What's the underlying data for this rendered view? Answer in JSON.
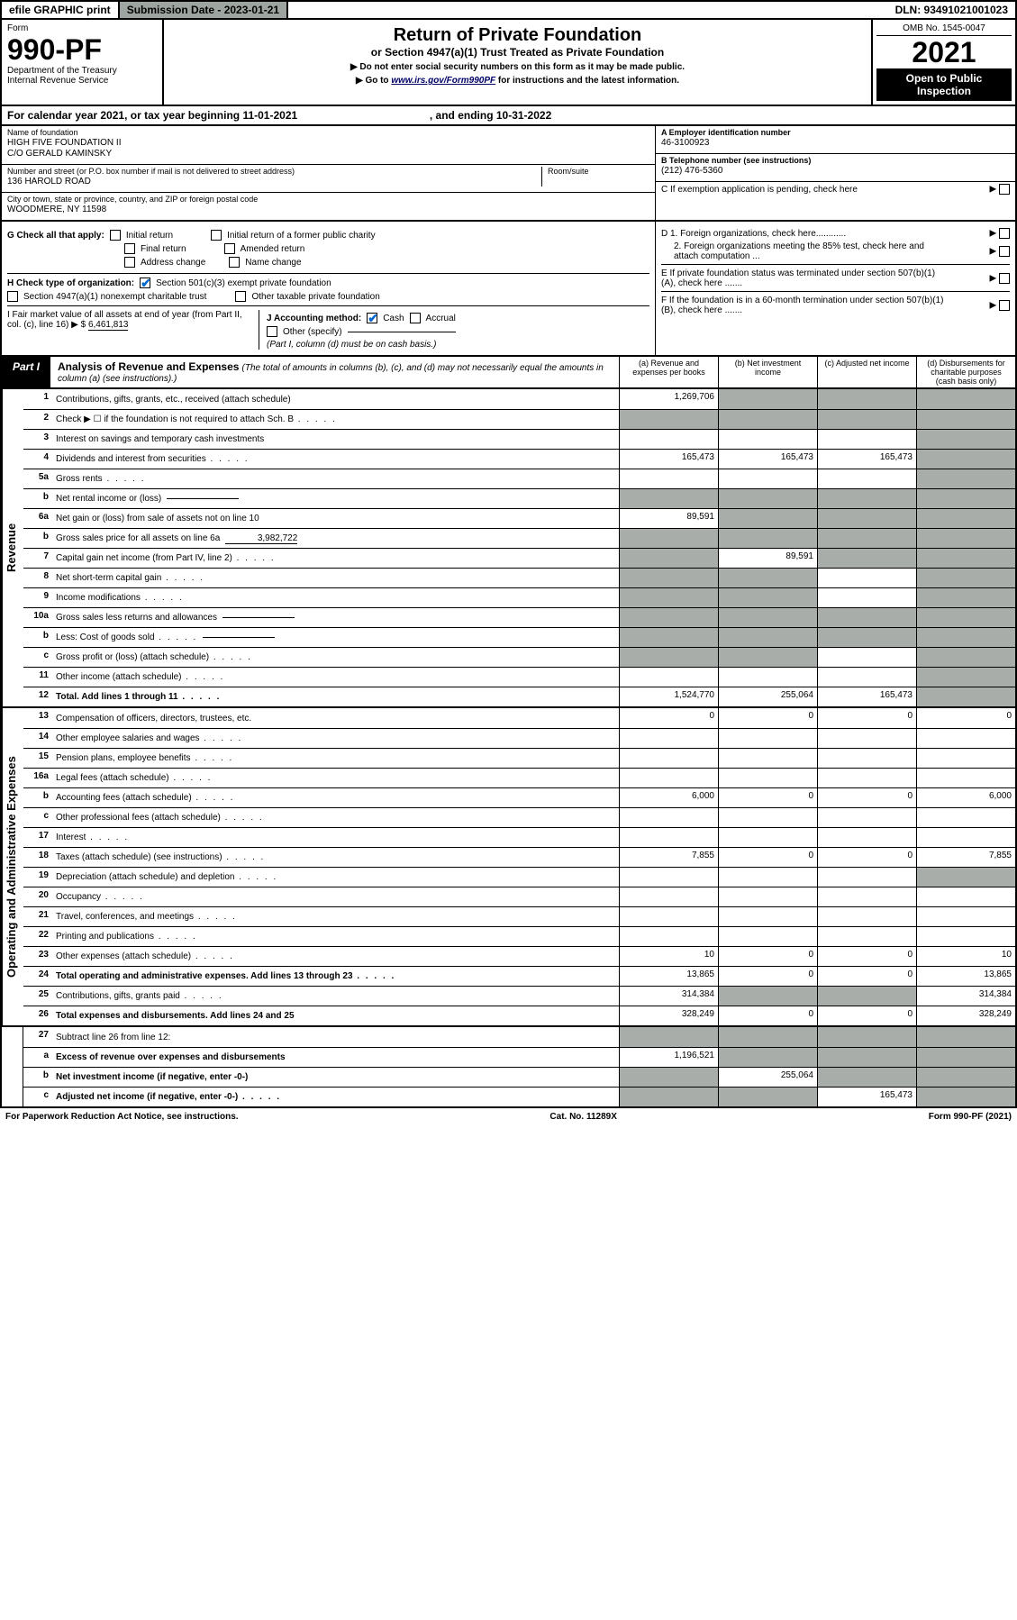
{
  "topbar": {
    "efile": "efile GRAPHIC print",
    "sub_label": "Submission Date - 2023-01-21",
    "dln": "DLN: 93491021001023"
  },
  "header": {
    "form_label": "Form",
    "form_no": "990-PF",
    "dept1": "Department of the Treasury",
    "dept2": "Internal Revenue Service",
    "title": "Return of Private Foundation",
    "subtitle": "or Section 4947(a)(1) Trust Treated as Private Foundation",
    "note1": "▶ Do not enter social security numbers on this form as it may be made public.",
    "note2_pre": "▶ Go to ",
    "note2_link": "www.irs.gov/Form990PF",
    "note2_post": " for instructions and the latest information.",
    "omb": "OMB No. 1545-0047",
    "year": "2021",
    "open": "Open to Public Inspection"
  },
  "calyear": {
    "text_a": "For calendar year 2021, or tax year beginning 11-01-2021",
    "text_b": ", and ending 10-31-2022"
  },
  "entity": {
    "name_label": "Name of foundation",
    "name1": "HIGH FIVE FOUNDATION II",
    "name2": "C/O GERALD KAMINSKY",
    "addr_label": "Number and street (or P.O. box number if mail is not delivered to street address)",
    "addr": "136 HAROLD ROAD",
    "room_label": "Room/suite",
    "city_label": "City or town, state or province, country, and ZIP or foreign postal code",
    "city": "WOODMERE, NY  11598",
    "ein_label": "A Employer identification number",
    "ein": "46-3100923",
    "tel_label": "B Telephone number (see instructions)",
    "tel": "(212) 476-5360",
    "c_label": "C If exemption application is pending, check here"
  },
  "checks": {
    "g_label": "G Check all that apply:",
    "g1": "Initial return",
    "g2": "Initial return of a former public charity",
    "g3": "Final return",
    "g4": "Amended return",
    "g5": "Address change",
    "g6": "Name change",
    "h_label": "H Check type of organization:",
    "h1": "Section 501(c)(3) exempt private foundation",
    "h2": "Section 4947(a)(1) nonexempt charitable trust",
    "h3": "Other taxable private foundation",
    "i_label": "I Fair market value of all assets at end of year (from Part II, col. (c), line 16)",
    "i_val": "6,461,813",
    "j_label": "J Accounting method:",
    "j1": "Cash",
    "j2": "Accrual",
    "j3": "Other (specify)",
    "j_note": "(Part I, column (d) must be on cash basis.)",
    "d1": "D 1. Foreign organizations, check here............",
    "d2": "2. Foreign organizations meeting the 85% test, check here and attach computation ...",
    "e": "E  If private foundation status was terminated under section 507(b)(1)(A), check here .......",
    "f": "F  If the foundation is in a 60-month termination under section 507(b)(1)(B), check here ......."
  },
  "part1": {
    "badge": "Part I",
    "title": "Analysis of Revenue and Expenses",
    "title_note": " (The total of amounts in columns (b), (c), and (d) may not necessarily equal the amounts in column (a) (see instructions).)",
    "cols": {
      "a": "(a)    Revenue and expenses per books",
      "b": "(b)    Net investment income",
      "c": "(c)    Adjusted net income",
      "d": "(d)    Disbursements for charitable purposes (cash basis only)"
    }
  },
  "sides": {
    "rev": "Revenue",
    "exp": "Operating and Administrative Expenses"
  },
  "rows": [
    {
      "n": "1",
      "d": "Contributions, gifts, grants, etc., received (attach schedule)",
      "a": "1,269,706",
      "b": "g",
      "c": "g",
      "dcol": "g"
    },
    {
      "n": "2",
      "d": "Check ▶ ☐ if the foundation is not required to attach Sch. B",
      "a": "g",
      "b": "g",
      "c": "g",
      "dcol": "g",
      "dots": true
    },
    {
      "n": "3",
      "d": "Interest on savings and temporary cash investments",
      "a": "",
      "b": "",
      "c": "",
      "dcol": "g"
    },
    {
      "n": "4",
      "d": "Dividends and interest from securities",
      "a": "165,473",
      "b": "165,473",
      "c": "165,473",
      "dcol": "g",
      "dots": true
    },
    {
      "n": "5a",
      "d": "Gross rents",
      "a": "",
      "b": "",
      "c": "",
      "dcol": "g",
      "dots": true
    },
    {
      "n": "b",
      "d": "Net rental income or (loss)",
      "a": "g",
      "b": "g",
      "c": "g",
      "dcol": "g",
      "inline": ""
    },
    {
      "n": "6a",
      "d": "Net gain or (loss) from sale of assets not on line 10",
      "a": "89,591",
      "b": "g",
      "c": "g",
      "dcol": "g"
    },
    {
      "n": "b",
      "d": "Gross sales price for all assets on line 6a",
      "a": "g",
      "b": "g",
      "c": "g",
      "dcol": "g",
      "inline": "3,982,722"
    },
    {
      "n": "7",
      "d": "Capital gain net income (from Part IV, line 2)",
      "a": "g",
      "b": "89,591",
      "c": "g",
      "dcol": "g",
      "dots": true
    },
    {
      "n": "8",
      "d": "Net short-term capital gain",
      "a": "g",
      "b": "g",
      "c": "",
      "dcol": "g",
      "dots": true
    },
    {
      "n": "9",
      "d": "Income modifications",
      "a": "g",
      "b": "g",
      "c": "",
      "dcol": "g",
      "dots": true
    },
    {
      "n": "10a",
      "d": "Gross sales less returns and allowances",
      "a": "g",
      "b": "g",
      "c": "g",
      "dcol": "g",
      "inline": ""
    },
    {
      "n": "b",
      "d": "Less: Cost of goods sold",
      "a": "g",
      "b": "g",
      "c": "g",
      "dcol": "g",
      "inline": "",
      "dots": true
    },
    {
      "n": "c",
      "d": "Gross profit or (loss) (attach schedule)",
      "a": "g",
      "b": "g",
      "c": "",
      "dcol": "g",
      "dots": true
    },
    {
      "n": "11",
      "d": "Other income (attach schedule)",
      "a": "",
      "b": "",
      "c": "",
      "dcol": "g",
      "dots": true
    },
    {
      "n": "12",
      "d": "Total. Add lines 1 through 11",
      "a": "1,524,770",
      "b": "255,064",
      "c": "165,473",
      "dcol": "g",
      "bold": true,
      "dots": true
    }
  ],
  "exp_rows": [
    {
      "n": "13",
      "d": "Compensation of officers, directors, trustees, etc.",
      "a": "0",
      "b": "0",
      "c": "0",
      "dcol": "0"
    },
    {
      "n": "14",
      "d": "Other employee salaries and wages",
      "a": "",
      "b": "",
      "c": "",
      "dcol": "",
      "dots": true
    },
    {
      "n": "15",
      "d": "Pension plans, employee benefits",
      "a": "",
      "b": "",
      "c": "",
      "dcol": "",
      "dots": true
    },
    {
      "n": "16a",
      "d": "Legal fees (attach schedule)",
      "a": "",
      "b": "",
      "c": "",
      "dcol": "",
      "dots": true
    },
    {
      "n": "b",
      "d": "Accounting fees (attach schedule)",
      "a": "6,000",
      "b": "0",
      "c": "0",
      "dcol": "6,000",
      "dots": true
    },
    {
      "n": "c",
      "d": "Other professional fees (attach schedule)",
      "a": "",
      "b": "",
      "c": "",
      "dcol": "",
      "dots": true
    },
    {
      "n": "17",
      "d": "Interest",
      "a": "",
      "b": "",
      "c": "",
      "dcol": "",
      "dots": true
    },
    {
      "n": "18",
      "d": "Taxes (attach schedule) (see instructions)",
      "a": "7,855",
      "b": "0",
      "c": "0",
      "dcol": "7,855",
      "dots": true
    },
    {
      "n": "19",
      "d": "Depreciation (attach schedule) and depletion",
      "a": "",
      "b": "",
      "c": "",
      "dcol": "g",
      "dots": true
    },
    {
      "n": "20",
      "d": "Occupancy",
      "a": "",
      "b": "",
      "c": "",
      "dcol": "",
      "dots": true
    },
    {
      "n": "21",
      "d": "Travel, conferences, and meetings",
      "a": "",
      "b": "",
      "c": "",
      "dcol": "",
      "dots": true
    },
    {
      "n": "22",
      "d": "Printing and publications",
      "a": "",
      "b": "",
      "c": "",
      "dcol": "",
      "dots": true
    },
    {
      "n": "23",
      "d": "Other expenses (attach schedule)",
      "a": "10",
      "b": "0",
      "c": "0",
      "dcol": "10",
      "dots": true
    },
    {
      "n": "24",
      "d": "Total operating and administrative expenses. Add lines 13 through 23",
      "a": "13,865",
      "b": "0",
      "c": "0",
      "dcol": "13,865",
      "bold": true,
      "dots": true
    },
    {
      "n": "25",
      "d": "Contributions, gifts, grants paid",
      "a": "314,384",
      "b": "g",
      "c": "g",
      "dcol": "314,384",
      "dots": true
    },
    {
      "n": "26",
      "d": "Total expenses and disbursements. Add lines 24 and 25",
      "a": "328,249",
      "b": "0",
      "c": "0",
      "dcol": "328,249",
      "bold": true
    }
  ],
  "net_rows": [
    {
      "n": "27",
      "d": "Subtract line 26 from line 12:",
      "a": "g",
      "b": "g",
      "c": "g",
      "dcol": "g"
    },
    {
      "n": "a",
      "d": "Excess of revenue over expenses and disbursements",
      "a": "1,196,521",
      "b": "g",
      "c": "g",
      "dcol": "g",
      "bold": true
    },
    {
      "n": "b",
      "d": "Net investment income (if negative, enter -0-)",
      "a": "g",
      "b": "255,064",
      "c": "g",
      "dcol": "g",
      "bold": true
    },
    {
      "n": "c",
      "d": "Adjusted net income (if negative, enter -0-)",
      "a": "g",
      "b": "g",
      "c": "165,473",
      "dcol": "g",
      "bold": true,
      "dots": true
    }
  ],
  "footer": {
    "left": "For Paperwork Reduction Act Notice, see instructions.",
    "mid": "Cat. No. 11289X",
    "right": "Form 990-PF (2021)"
  },
  "colors": {
    "grey": "#a9ada9",
    "dark_btn": "#9ea4a0",
    "link": "#000099",
    "check": "#0066cc"
  }
}
